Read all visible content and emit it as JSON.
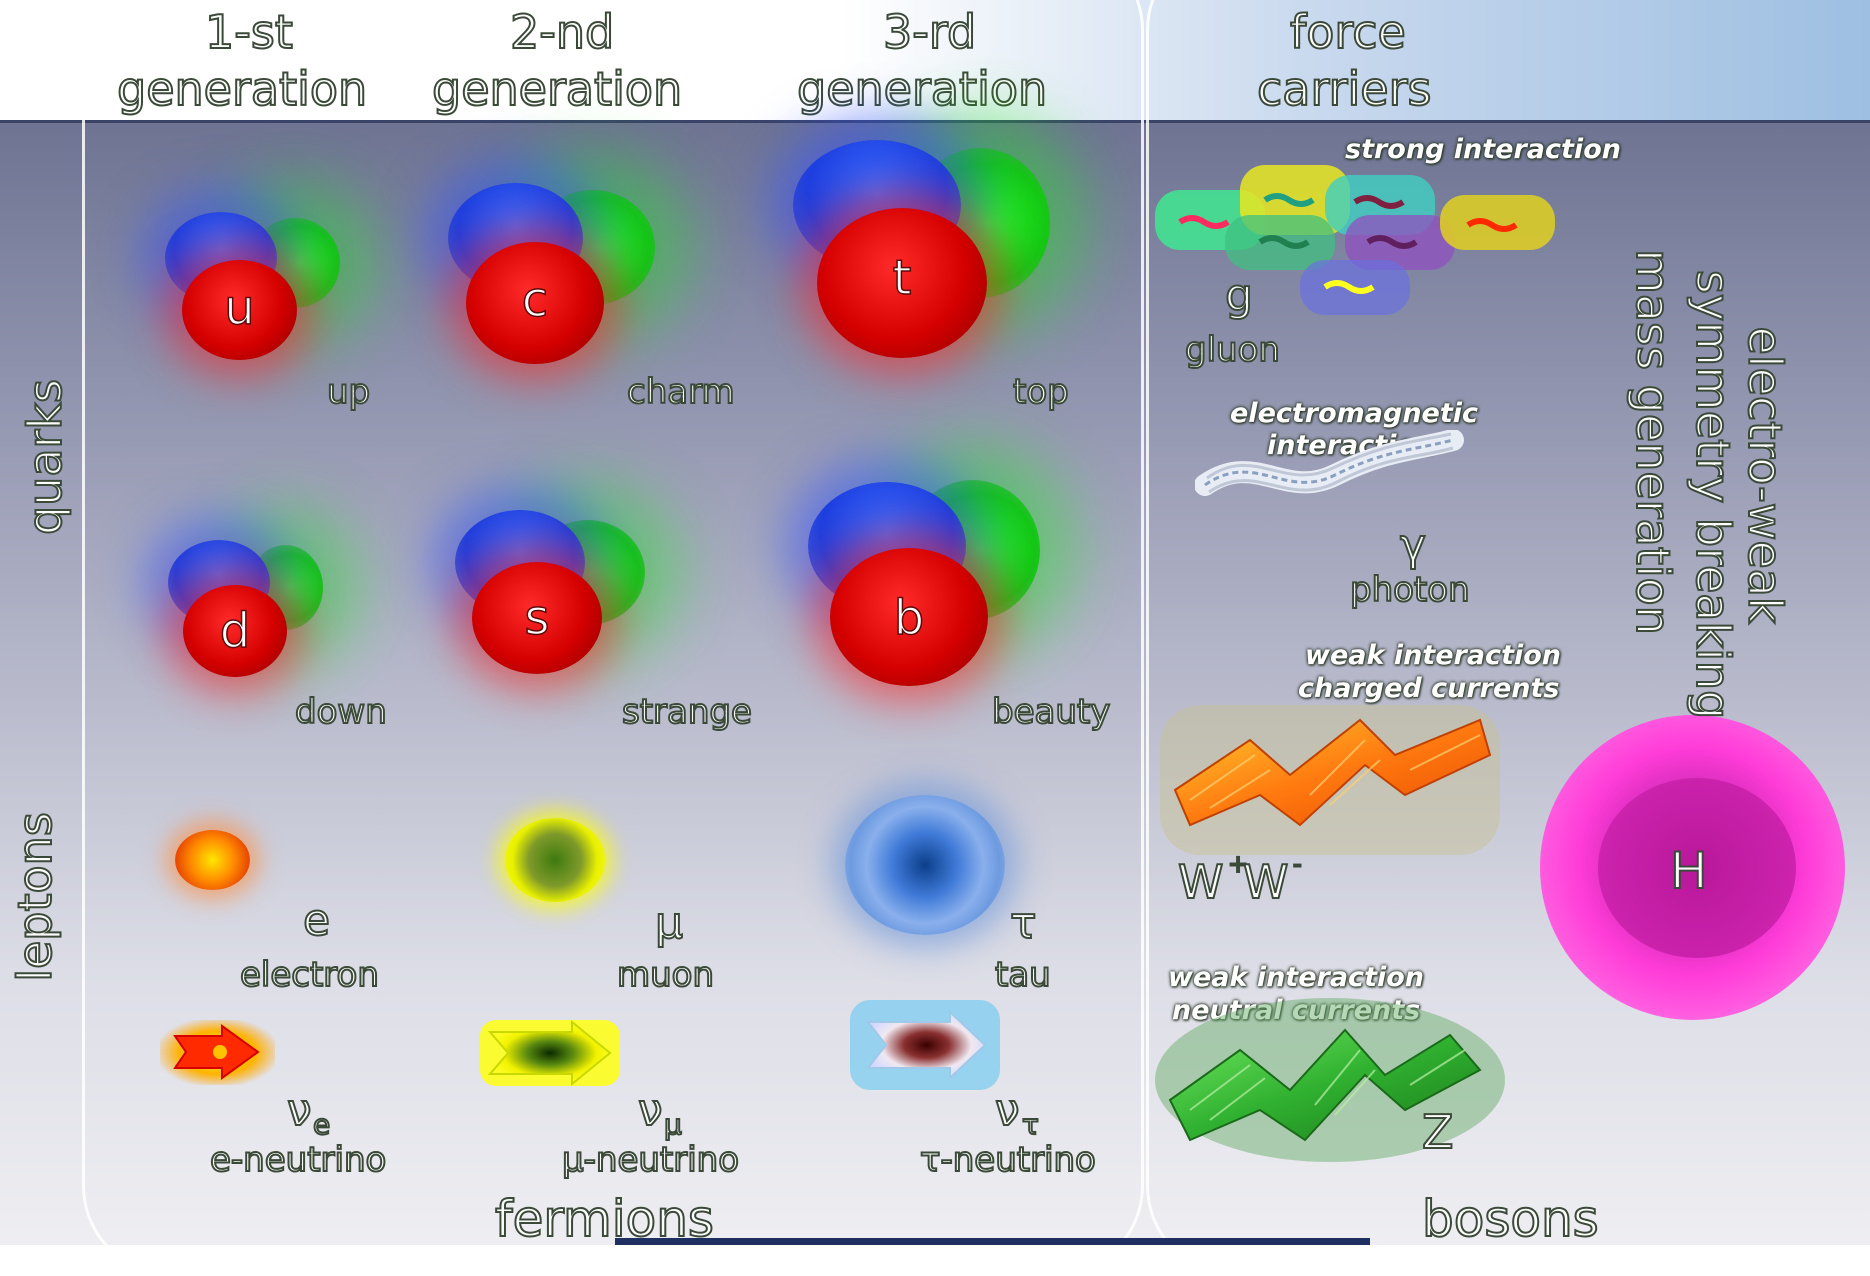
{
  "header": {
    "gen1_line1": "1-st",
    "gen1_line2": "generation",
    "gen2_line1": "2-nd",
    "gen2_line2": "generation",
    "gen3_line1": "3-rd",
    "gen3_line2": "generation",
    "force_line1": "force",
    "force_line2": "carriers"
  },
  "side_labels": {
    "quarks": "quarks",
    "leptons": "leptons"
  },
  "quarks": [
    {
      "symbol": "u",
      "name": "up"
    },
    {
      "symbol": "c",
      "name": "charm"
    },
    {
      "symbol": "t",
      "name": "top"
    },
    {
      "symbol": "d",
      "name": "down"
    },
    {
      "symbol": "s",
      "name": "strange"
    },
    {
      "symbol": "b",
      "name": "beauty"
    }
  ],
  "leptons": [
    {
      "symbol": "e",
      "name": "electron"
    },
    {
      "symbol": "μ",
      "name": "muon"
    },
    {
      "symbol": "τ",
      "name": "tau"
    }
  ],
  "neutrinos": [
    {
      "symbol": "ν",
      "sub": "e",
      "name": "e-neutrino"
    },
    {
      "symbol": "ν",
      "sub": "μ",
      "name": "μ-neutrino"
    },
    {
      "symbol": "ν",
      "sub": "τ",
      "name": "τ-neutrino"
    }
  ],
  "bosons": {
    "gluon": {
      "interaction": "strong interaction",
      "symbol": "g",
      "name": "gluon"
    },
    "photon": {
      "interaction_line1": "electromagnetic",
      "interaction_line2": "interaction",
      "symbol": "γ",
      "name": "photon"
    },
    "w": {
      "interaction_line1": "weak interaction",
      "interaction_line2": "charged currents",
      "symbol": "W",
      "sup1": "+",
      "symbol2": "W",
      "sup2": "-"
    },
    "z": {
      "interaction_line1": "weak interaction",
      "interaction_line2": "neutral currents",
      "symbol": "Z"
    },
    "higgs": {
      "symbol": "H"
    }
  },
  "vertical_labels": {
    "electroweak": "electro-weak",
    "symmetry": "symmetry breaking",
    "mass": "mass generation"
  },
  "footer": {
    "fermions": "fermions",
    "bosons": "bosons"
  },
  "colors": {
    "quark_red": "#d40000",
    "quark_blue": "#1d3fe0",
    "quark_green": "#14c814",
    "higgs": "#ff2fd0",
    "electron": "#ff7a00",
    "muon": "#ffff00",
    "tau": "#4a86e0"
  }
}
